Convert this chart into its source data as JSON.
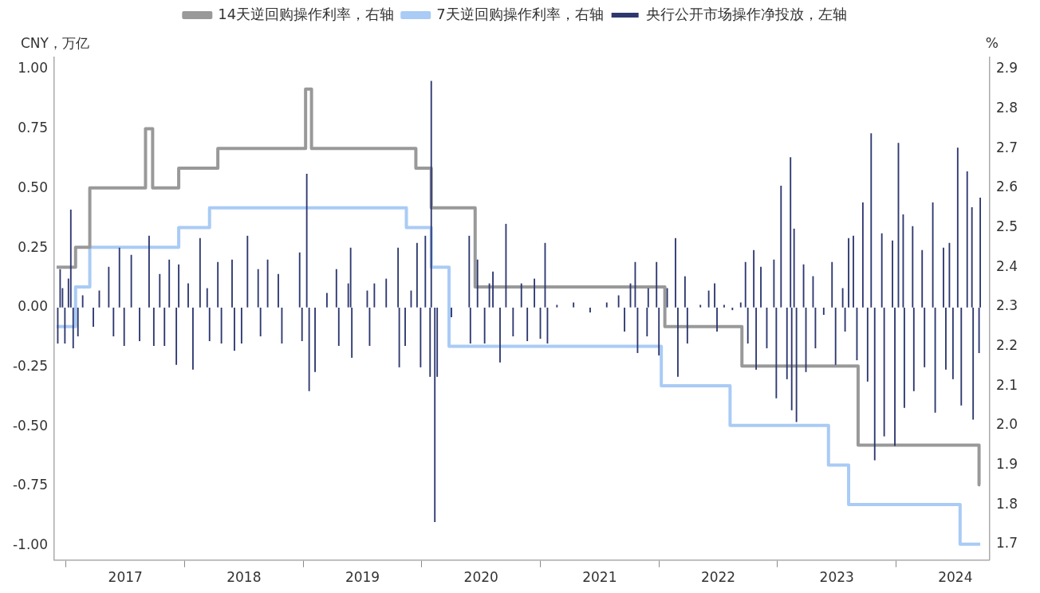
{
  "chart_data": {
    "type": "bar",
    "ylabel": "CNY，万亿",
    "y2label": "%",
    "legend": "top",
    "grid": false,
    "xlim": [
      2016.9,
      2024.79
    ],
    "xticks": [
      {
        "value": 2017,
        "label": null
      },
      {
        "value": 2017.5,
        "label": "2017"
      },
      {
        "value": 2018,
        "label": null
      },
      {
        "value": 2018.5,
        "label": "2018"
      },
      {
        "value": 2019,
        "label": null
      },
      {
        "value": 2019.5,
        "label": "2019"
      },
      {
        "value": 2020,
        "label": null
      },
      {
        "value": 2020.5,
        "label": "2020"
      },
      {
        "value": 2021,
        "label": null
      },
      {
        "value": 2021.5,
        "label": "2021"
      },
      {
        "value": 2022,
        "label": null
      },
      {
        "value": 2022.5,
        "label": "2022"
      },
      {
        "value": 2023,
        "label": null
      },
      {
        "value": 2023.5,
        "label": "2023"
      },
      {
        "value": 2024,
        "label": null
      },
      {
        "value": 2024.5,
        "label": "2024"
      }
    ],
    "ylim": [
      -1.06,
      1.05
    ],
    "yticks": [
      {
        "value": -1,
        "label": "-1.00"
      },
      {
        "value": -0.75,
        "label": "-0.75"
      },
      {
        "value": -0.5,
        "label": "-0.50"
      },
      {
        "value": -0.25,
        "label": "-0.25"
      },
      {
        "value": 0,
        "label": "0.00"
      },
      {
        "value": 0.25,
        "label": "0.25"
      },
      {
        "value": 0.5,
        "label": "0.50"
      },
      {
        "value": 0.75,
        "label": "0.75"
      },
      {
        "value": 1,
        "label": "1.00"
      }
    ],
    "y2lim": [
      1.66,
      2.93
    ],
    "y2ticks": [
      1.7,
      1.8,
      1.9,
      {
        "value": 2,
        "label": "2.0"
      },
      2.1,
      2.2,
      2.3,
      2.4,
      2.5,
      2.6,
      2.7,
      2.8,
      2.9
    ],
    "series": [
      {
        "name": "14天逆回购操作利率，右轴",
        "type": "step",
        "axis": "y2",
        "color": "#999999",
        "x": [
          2016.92,
          2017.08,
          2017.2,
          2017.67,
          2017.73,
          2017.95,
          2018.28,
          2019.02,
          2019.07,
          2019.95,
          2020.08,
          2020.45,
          2022.05,
          2022.7,
          2023.68,
          2024.7,
          2024.71
        ],
        "values": [
          2.4,
          2.45,
          2.6,
          2.75,
          2.6,
          2.65,
          2.7,
          2.85,
          2.7,
          2.65,
          2.55,
          2.35,
          2.25,
          2.15,
          1.95,
          1.85,
          1.85
        ]
      },
      {
        "name": "7天逆回购操作利率，右轴",
        "type": "step",
        "axis": "y2",
        "color": "#a9cbf5",
        "x": [
          2016.92,
          2017.08,
          2017.2,
          2017.95,
          2018.21,
          2019.87,
          2020.08,
          2020.23,
          2022.02,
          2022.6,
          2023.43,
          2023.6,
          2024.54,
          2024.71
        ],
        "values": [
          2.25,
          2.35,
          2.45,
          2.5,
          2.55,
          2.5,
          2.4,
          2.2,
          2.1,
          2.0,
          1.9,
          1.8,
          1.7,
          1.7
        ]
      },
      {
        "name": "央行公开市场操作净投放，左轴",
        "color": "#2e3870",
        "x": [
          2016.93,
          2016.95,
          2016.97,
          2016.99,
          2017.02,
          2017.04,
          2017.06,
          2017.1,
          2017.14,
          2017.23,
          2017.28,
          2017.36,
          2017.4,
          2017.45,
          2017.49,
          2017.55,
          2017.62,
          2017.7,
          2017.74,
          2017.79,
          2017.83,
          2017.87,
          2017.93,
          2017.95,
          2018.03,
          2018.07,
          2018.13,
          2018.19,
          2018.21,
          2018.28,
          2018.31,
          2018.4,
          2018.42,
          2018.48,
          2018.53,
          2018.62,
          2018.64,
          2018.7,
          2018.79,
          2018.82,
          2018.97,
          2018.99,
          2019.03,
          2019.05,
          2019.1,
          2019.2,
          2019.28,
          2019.3,
          2019.38,
          2019.4,
          2019.41,
          2019.54,
          2019.56,
          2019.6,
          2019.7,
          2019.8,
          2019.81,
          2019.86,
          2019.91,
          2019.96,
          2019.99,
          2020.03,
          2020.07,
          2020.08,
          2020.11,
          2020.13,
          2020.25,
          2020.4,
          2020.41,
          2020.47,
          2020.53,
          2020.57,
          2020.6,
          2020.66,
          2020.71,
          2020.77,
          2020.84,
          2020.89,
          2020.95,
          2021.0,
          2021.04,
          2021.06,
          2021.14,
          2021.28,
          2021.42,
          2021.56,
          2021.66,
          2021.71,
          2021.76,
          2021.8,
          2021.82,
          2021.9,
          2021.91,
          2021.98,
          2022.0,
          2022.07,
          2022.14,
          2022.16,
          2022.22,
          2022.24,
          2022.35,
          2022.42,
          2022.47,
          2022.49,
          2022.55,
          2022.62,
          2022.69,
          2022.73,
          2022.75,
          2022.8,
          2022.82,
          2022.86,
          2022.91,
          2022.97,
          2022.99,
          2023.03,
          2023.08,
          2023.11,
          2023.12,
          2023.14,
          2023.16,
          2023.22,
          2023.24,
          2023.3,
          2023.32,
          2023.39,
          2023.46,
          2023.49,
          2023.55,
          2023.57,
          2023.6,
          2023.64,
          2023.67,
          2023.72,
          2023.76,
          2023.79,
          2023.82,
          2023.88,
          2023.9,
          2023.97,
          2023.99,
          2024.02,
          2024.06,
          2024.07,
          2024.14,
          2024.15,
          2024.22,
          2024.24,
          2024.31,
          2024.33,
          2024.4,
          2024.42,
          2024.45,
          2024.48,
          2024.52,
          2024.55,
          2024.6,
          2024.64,
          2024.65,
          2024.7,
          2024.71
        ],
        "values": [
          -0.15,
          0.16,
          0.08,
          -0.15,
          0.12,
          0.41,
          -0.17,
          -0.12,
          0.05,
          -0.08,
          0.07,
          0.17,
          -0.12,
          0.25,
          -0.16,
          0.22,
          -0.14,
          0.3,
          -0.16,
          0.14,
          -0.16,
          0.2,
          -0.24,
          0.18,
          0.1,
          -0.26,
          0.29,
          0.08,
          -0.14,
          0.19,
          -0.15,
          0.2,
          -0.18,
          -0.15,
          0.3,
          0.16,
          -0.12,
          0.2,
          0.14,
          -0.15,
          0.23,
          -0.14,
          0.56,
          -0.35,
          -0.27,
          0.06,
          0.16,
          -0.16,
          0.1,
          0.25,
          -0.21,
          0.07,
          -0.16,
          0.1,
          0.12,
          0.25,
          -0.25,
          -0.16,
          0.07,
          0.27,
          -0.25,
          0.3,
          -0.29,
          0.95,
          -0.9,
          -0.29,
          -0.04,
          0.3,
          -0.15,
          0.2,
          -0.15,
          0.1,
          0.15,
          -0.23,
          0.35,
          -0.12,
          0.1,
          -0.14,
          0.12,
          -0.13,
          0.27,
          -0.15,
          0.01,
          0.02,
          -0.02,
          0.02,
          0.05,
          -0.1,
          0.1,
          0.19,
          -0.19,
          -0.12,
          0.08,
          0.19,
          -0.2,
          0.08,
          0.29,
          -0.29,
          0.13,
          -0.15,
          0.01,
          0.07,
          0.1,
          -0.1,
          0.01,
          -0.01,
          0.02,
          0.19,
          -0.15,
          0.24,
          -0.26,
          0.17,
          -0.17,
          0.2,
          -0.38,
          0.51,
          -0.3,
          0.63,
          -0.43,
          0.33,
          -0.48,
          0.18,
          -0.27,
          0.13,
          -0.17,
          -0.03,
          0.19,
          -0.24,
          0.08,
          -0.1,
          0.29,
          0.3,
          -0.22,
          0.44,
          -0.31,
          0.73,
          -0.64,
          0.31,
          -0.54,
          0.28,
          -0.58,
          0.69,
          0.39,
          -0.42,
          0.34,
          -0.35,
          0.24,
          -0.25,
          0.44,
          -0.44,
          0.25,
          -0.26,
          0.27,
          -0.3,
          0.67,
          -0.41,
          0.57,
          0.42,
          -0.47,
          -0.19,
          0.46
        ]
      }
    ]
  }
}
